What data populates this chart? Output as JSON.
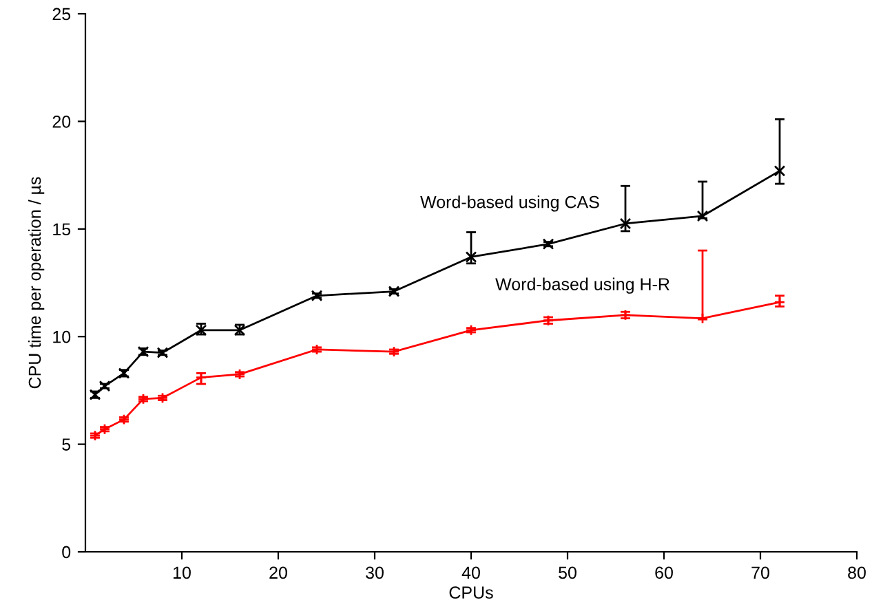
{
  "chart_data": {
    "type": "line",
    "xlabel": "CPUs",
    "ylabel": "CPU time per operation / µs",
    "x": [
      1,
      2,
      4,
      6,
      8,
      12,
      16,
      24,
      32,
      40,
      48,
      56,
      64,
      72
    ],
    "series": [
      {
        "name": "Word-based using CAS",
        "color": "#000000",
        "marker": "cross",
        "values": [
          7.3,
          7.7,
          8.3,
          9.3,
          9.25,
          10.3,
          10.3,
          11.9,
          12.1,
          13.7,
          14.3,
          15.25,
          15.6,
          17.7
        ],
        "errors": [
          0.15,
          0.1,
          0.15,
          0.15,
          0.1,
          [
            10.1,
            10.6
          ],
          [
            10.1,
            10.55
          ],
          0.1,
          0.1,
          [
            13.4,
            14.85
          ],
          0.1,
          [
            14.9,
            17.0
          ],
          [
            15.5,
            17.2
          ],
          [
            17.1,
            20.1
          ]
        ]
      },
      {
        "name": "Word-based using H-R",
        "color": "#ff0000",
        "marker": "plus",
        "values": [
          5.4,
          5.7,
          6.15,
          7.1,
          7.15,
          8.1,
          8.25,
          9.4,
          9.3,
          10.3,
          10.75,
          11.0,
          10.85,
          11.6
        ],
        "errors": [
          0.1,
          0.1,
          0.1,
          0.1,
          0.1,
          [
            7.8,
            8.3
          ],
          0.1,
          0.1,
          0.1,
          0.1,
          0.15,
          0.15,
          [
            10.8,
            14.0
          ],
          [
            11.4,
            11.9
          ]
        ]
      }
    ],
    "xlim": [
      0,
      80
    ],
    "xticks": [
      10,
      20,
      30,
      40,
      50,
      60,
      70,
      80
    ],
    "ylim": [
      0,
      25
    ],
    "yticks": [
      0,
      5,
      10,
      15,
      20,
      25
    ],
    "grid": false,
    "legend": false
  }
}
